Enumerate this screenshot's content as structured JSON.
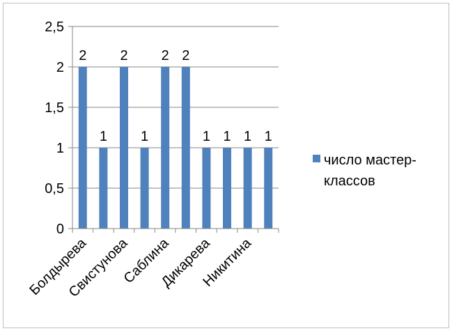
{
  "chart_data": {
    "type": "bar",
    "categories": [
      "Болдырева",
      "",
      "Свистунова",
      "",
      "Саблина",
      "",
      "Дикарева",
      "",
      "Никитина",
      ""
    ],
    "series": [
      {
        "name": "число мастер-классов",
        "values": [
          2,
          1,
          2,
          1,
          2,
          2,
          1,
          1,
          1,
          1
        ],
        "color": "#4f81bd"
      }
    ],
    "ylim": [
      0,
      2.5
    ],
    "yticks": [
      "0",
      "0,5",
      "1",
      "1,5",
      "2",
      "2,5"
    ],
    "data_labels": [
      "2",
      "1",
      "2",
      "1",
      "2",
      "2",
      "1",
      "1",
      "1",
      "1"
    ],
    "xtick_labels": [
      "Болдырева",
      "Свистунова",
      "Саблина",
      "Дикарева",
      "Никитина"
    ],
    "legend": {
      "position": "right",
      "lines": [
        "число мастер-",
        "классов"
      ]
    },
    "grid": true,
    "title": "",
    "xlabel": "",
    "ylabel": ""
  }
}
